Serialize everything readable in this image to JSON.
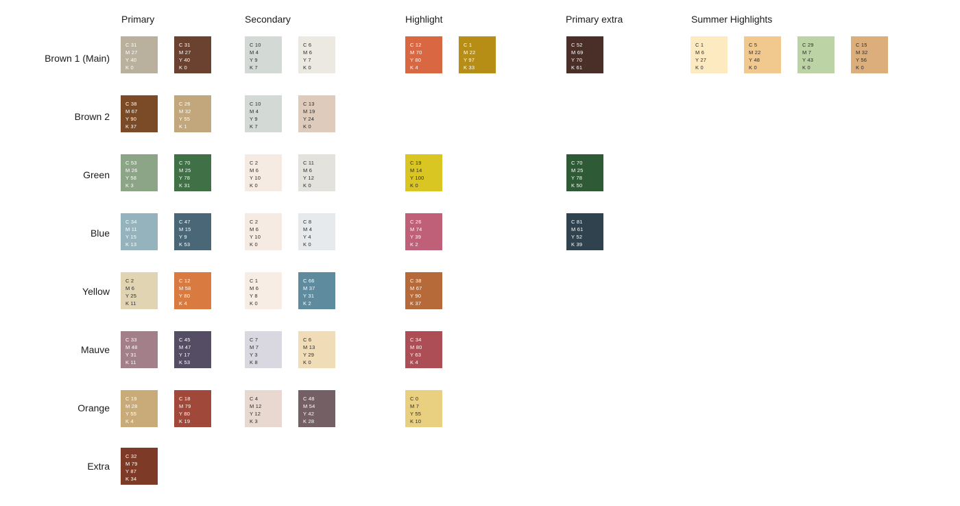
{
  "columns": {
    "primary": "Primary",
    "secondary": "Secondary",
    "highlight": "Highlight",
    "primary_extra": "Primary extra",
    "summer": "Summer Highlights"
  },
  "rows": {
    "brown1": "Brown 1 (Main)",
    "brown2": "Brown 2",
    "green": "Green",
    "blue": "Blue",
    "yellow": "Yellow",
    "mauve": "Mauve",
    "orange": "Orange",
    "extra": "Extra"
  },
  "swatches": {
    "brown1_primary_1": {
      "color": "#b9b19d",
      "text_color": "#ffffff",
      "c": "C 31",
      "m": "M 27",
      "y": "Y 40",
      "k": "K 0"
    },
    "brown1_primary_2": {
      "color": "#6b4230",
      "text_color": "#ffffff",
      "c": "C 31",
      "m": "M 27",
      "y": "Y 40",
      "k": "K 0"
    },
    "brown1_secondary_1": {
      "color": "#d3dad6",
      "text_color": "#2a2a2a",
      "c": "C 10",
      "m": "M 4",
      "y": "Y 9",
      "k": "K 7"
    },
    "brown1_secondary_2": {
      "color": "#ece8e2",
      "text_color": "#2a2a2a",
      "c": "C 6",
      "m": "M 6",
      "y": "Y 7",
      "k": "K 0"
    },
    "brown1_highlight_1": {
      "color": "#d96741",
      "text_color": "#ffffff",
      "c": "C 12",
      "m": "M 70",
      "y": "Y 80",
      "k": "K 4"
    },
    "brown1_highlight_2": {
      "color": "#b68e15",
      "text_color": "#ffffff",
      "c": "C 1",
      "m": "M 22",
      "y": "Y 97",
      "k": "K 33"
    },
    "brown1_primary_extra": {
      "color": "#4a2f29",
      "text_color": "#ffffff",
      "c": "C 52",
      "m": "M 69",
      "y": "Y 70",
      "k": "K 61"
    },
    "brown1_summer_1": {
      "color": "#fdeac0",
      "text_color": "#2a2a2a",
      "c": "C 1",
      "m": "M 6",
      "y": "Y 27",
      "k": "K 0"
    },
    "brown1_summer_2": {
      "color": "#f1c98f",
      "text_color": "#2a2a2a",
      "c": "C 5",
      "m": "M 22",
      "y": "Y 48",
      "k": "K 0"
    },
    "brown1_summer_3": {
      "color": "#bcd3a5",
      "text_color": "#2a2a2a",
      "c": "C 29",
      "m": "M 7",
      "y": "Y 43",
      "k": "K 0"
    },
    "brown1_summer_4": {
      "color": "#dcae7c",
      "text_color": "#2a2a2a",
      "c": "C 15",
      "m": "M 32",
      "y": "Y 56",
      "k": "K 0"
    },
    "brown2_primary_1": {
      "color": "#7a4b26",
      "text_color": "#ffffff",
      "c": "C 38",
      "m": "M 67",
      "y": "Y 90",
      "k": "K 37"
    },
    "brown2_primary_2": {
      "color": "#c2a77c",
      "text_color": "#ffffff",
      "c": "C 26",
      "m": "M 32",
      "y": "Y 55",
      "k": "K 1"
    },
    "brown2_secondary_1": {
      "color": "#d3dad6",
      "text_color": "#2a2a2a",
      "c": "C 10",
      "m": "M 4",
      "y": "Y 9",
      "k": "K 7"
    },
    "brown2_secondary_2": {
      "color": "#dfcbbb",
      "text_color": "#2a2a2a",
      "c": "C 13",
      "m": "M 19",
      "y": "Y 24",
      "k": "K 0"
    },
    "green_primary_1": {
      "color": "#8da587",
      "text_color": "#ffffff",
      "c": "C 53",
      "m": "M 26",
      "y": "Y 58",
      "k": "K 3"
    },
    "green_primary_2": {
      "color": "#3f7046",
      "text_color": "#ffffff",
      "c": "C 70",
      "m": "M 25",
      "y": "Y 78",
      "k": "K 31"
    },
    "green_secondary_1": {
      "color": "#f6ebe2",
      "text_color": "#2a2a2a",
      "c": "C 2",
      "m": "M 6",
      "y": "Y 10",
      "k": "K 0"
    },
    "green_secondary_2": {
      "color": "#e3e2dc",
      "text_color": "#2a2a2a",
      "c": "C 11",
      "m": "M 6",
      "y": "Y 12",
      "k": "K 0"
    },
    "green_highlight_1": {
      "color": "#d9c622",
      "text_color": "#2a2a2a",
      "c": "C 19",
      "m": "M 14",
      "y": "Y 100",
      "k": "K 0"
    },
    "green_primary_extra": {
      "color": "#2f5a36",
      "text_color": "#ffffff",
      "c": "C 70",
      "m": "M 25",
      "y": "Y 78",
      "k": "K 50"
    },
    "blue_primary_1": {
      "color": "#94b3bd",
      "text_color": "#ffffff",
      "c": "C 34",
      "m": "M 11",
      "y": "Y 15",
      "k": "K 13"
    },
    "blue_primary_2": {
      "color": "#4a6778",
      "text_color": "#ffffff",
      "c": "C 47",
      "m": "M 15",
      "y": "Y 9",
      "k": "K 53"
    },
    "blue_secondary_1": {
      "color": "#f6ebe2",
      "text_color": "#2a2a2a",
      "c": "C 2",
      "m": "M 6",
      "y": "Y 10",
      "k": "K 0"
    },
    "blue_secondary_2": {
      "color": "#e7eaec",
      "text_color": "#2a2a2a",
      "c": "C 8",
      "m": "M 4",
      "y": "Y 4",
      "k": "K 0"
    },
    "blue_highlight_1": {
      "color": "#bf5f78",
      "text_color": "#ffffff",
      "c": "C 26",
      "m": "M 74",
      "y": "Y 39",
      "k": "K 2"
    },
    "blue_primary_extra": {
      "color": "#30424d",
      "text_color": "#ffffff",
      "c": "C 81",
      "m": "M 61",
      "y": "Y 52",
      "k": "K 39"
    },
    "yellow_primary_1": {
      "color": "#e0d4b2",
      "text_color": "#2a2a2a",
      "c": "C 2",
      "m": "M 6",
      "y": "Y 25",
      "k": "K 11"
    },
    "yellow_primary_2": {
      "color": "#d97b41",
      "text_color": "#ffffff",
      "c": "C 12",
      "m": "M 58",
      "y": "Y 80",
      "k": "K 4"
    },
    "yellow_secondary_1": {
      "color": "#f7ede4",
      "text_color": "#2a2a2a",
      "c": "C 1",
      "m": "M 6",
      "y": "Y 8",
      "k": "K 0"
    },
    "yellow_secondary_2": {
      "color": "#5f8b9e",
      "text_color": "#ffffff",
      "c": "C 66",
      "m": "M 37",
      "y": "Y 31",
      "k": "K 2"
    },
    "yellow_highlight_1": {
      "color": "#b66a39",
      "text_color": "#ffffff",
      "c": "C 38",
      "m": "M 67",
      "y": "Y 90",
      "k": "K 37"
    },
    "mauve_primary_1": {
      "color": "#a37f89",
      "text_color": "#ffffff",
      "c": "C 33",
      "m": "M 48",
      "y": "Y 31",
      "k": "K 11"
    },
    "mauve_primary_2": {
      "color": "#544d63",
      "text_color": "#ffffff",
      "c": "C 45",
      "m": "M 47",
      "y": "Y 17",
      "k": "K 53"
    },
    "mauve_secondary_1": {
      "color": "#d9d8e0",
      "text_color": "#2a2a2a",
      "c": "C 7",
      "m": "M 7",
      "y": "Y 3",
      "k": "K 8"
    },
    "mauve_secondary_2": {
      "color": "#f1dcb8",
      "text_color": "#2a2a2a",
      "c": "C 6",
      "m": "M 13",
      "y": "Y 29",
      "k": "K 0"
    },
    "mauve_highlight_1": {
      "color": "#ad4d55",
      "text_color": "#ffffff",
      "c": "C 34",
      "m": "M 80",
      "y": "Y 63",
      "k": "K 4"
    },
    "orange_primary_1": {
      "color": "#c9ab7a",
      "text_color": "#ffffff",
      "c": "C 19",
      "m": "M 28",
      "y": "Y 55",
      "k": "K 4"
    },
    "orange_primary_2": {
      "color": "#a0493a",
      "text_color": "#ffffff",
      "c": "C 18",
      "m": "M 79",
      "y": "Y 80",
      "k": "K 19"
    },
    "orange_secondary_1": {
      "color": "#e8d8d0",
      "text_color": "#2a2a2a",
      "c": "C 4",
      "m": "M 12",
      "y": "Y 12",
      "k": "K 3"
    },
    "orange_secondary_2": {
      "color": "#735f64",
      "text_color": "#ffffff",
      "c": "C 48",
      "m": "M 54",
      "y": "Y 42",
      "k": "K 28"
    },
    "orange_highlight_1": {
      "color": "#e8d080",
      "text_color": "#2a2a2a",
      "c": "C 0",
      "m": "M 7",
      "y": "Y 55",
      "k": "K 10"
    },
    "extra_primary_1": {
      "color": "#7d3b27",
      "text_color": "#ffffff",
      "c": "C 32",
      "m": "M 79",
      "y": "Y 87",
      "k": "K 34"
    }
  }
}
